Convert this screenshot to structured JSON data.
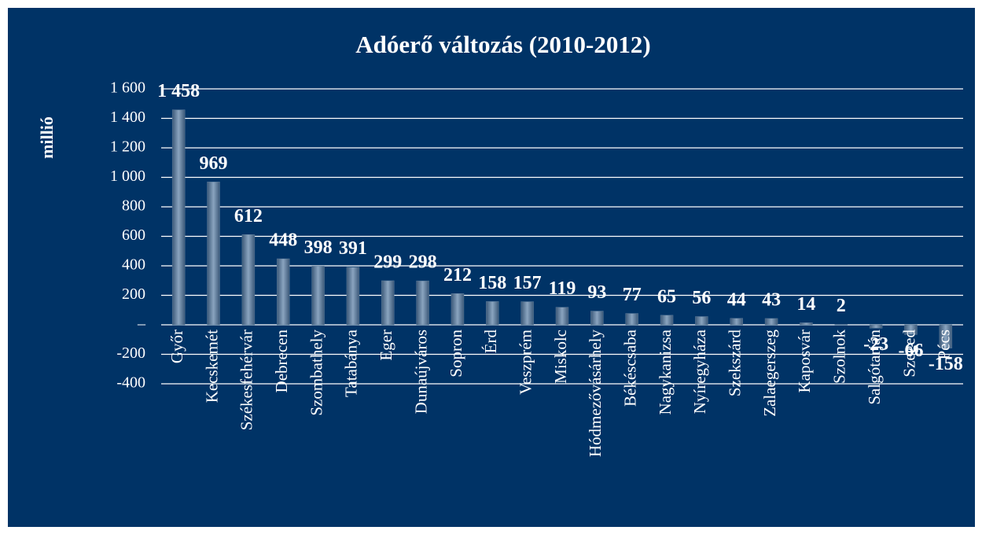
{
  "chart_data": {
    "type": "bar",
    "title": "Adóerő változás (2010-2012)",
    "y_label": "millió",
    "categories": [
      "Győr",
      "Kecskemét",
      "Székesfehérvár",
      "Debrecen",
      "Szombathely",
      "Tatabánya",
      "Eger",
      "Dunaújváros",
      "Sopron",
      "Érd",
      "Veszprém",
      "Miskolc",
      "Hódmezővásárhely",
      "Békéscsaba",
      "Nagykanizsa",
      "Nyíregyháza",
      "Szekszárd",
      "Zalaegerszeg",
      "Kaposvár",
      "Szolnok",
      "Salgótarján",
      "Szeged",
      "Pécs"
    ],
    "values": [
      1458,
      969,
      612,
      448,
      398,
      391,
      299,
      298,
      212,
      158,
      157,
      119,
      93,
      77,
      65,
      56,
      44,
      43,
      14,
      2,
      -23,
      -66,
      -158
    ],
    "value_labels": [
      "1 458",
      "969",
      "612",
      "448",
      "398",
      "391",
      "299",
      "298",
      "212",
      "158",
      "157",
      "119",
      "93",
      "77",
      "65",
      "56",
      "44",
      "43",
      "14",
      "2",
      "-23",
      "-66",
      "-158"
    ],
    "color": "#5a7a9a",
    "ylim": [
      -400,
      1600
    ],
    "yticks": [
      {
        "value": -400,
        "label": "-400"
      },
      {
        "value": -200,
        "label": "-200"
      },
      {
        "value": 0,
        "label": "–"
      },
      200,
      400,
      600,
      800,
      {
        "value": 1000,
        "label": "1 000"
      },
      {
        "value": 1200,
        "label": "1 200"
      },
      {
        "value": 1400,
        "label": "1 400"
      },
      {
        "value": 1600,
        "label": "1 600"
      }
    ],
    "grid": true
  }
}
